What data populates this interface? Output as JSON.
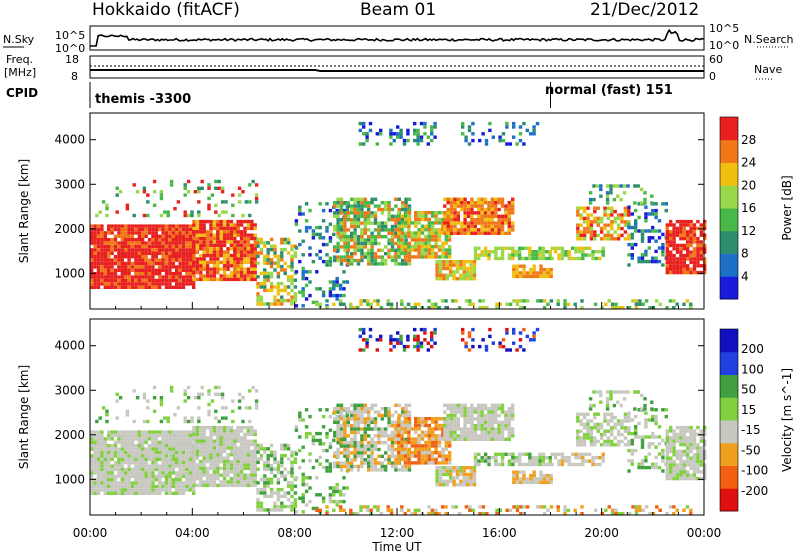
{
  "header": {
    "station": "Hokkaido (fitACF)",
    "beam": "Beam 01",
    "date": "21/Dec/2012"
  },
  "panels": {
    "nsky_label": "N.Sky",
    "nsearch_label": "N.Search",
    "nsearch_ticks": [
      "10^5",
      "10^0"
    ],
    "freq_label_line1": "Freq.",
    "freq_label_line2": "[MHz]",
    "freq_ticks": [
      "18",
      "8"
    ],
    "nave_label": "Nave",
    "nave_ticks": [
      "60",
      "0"
    ],
    "cpid_label": "CPID",
    "cpid_segments": [
      {
        "text": "themis -3300",
        "start_hour": 0,
        "end_hour": 18
      },
      {
        "text": "normal (fast) 151",
        "start_hour": 18,
        "end_hour": 24
      }
    ]
  },
  "chart_data": [
    {
      "type": "heatmap",
      "title": "",
      "ylabel": "Slant Range [km]",
      "xlabel": "",
      "xlim": [
        0,
        24
      ],
      "ylim": [
        200,
        4600
      ],
      "yticks": [
        "1000",
        "2000",
        "3000",
        "4000"
      ],
      "colorbar_label": "Power [dB]",
      "colorbar_ticks": [
        "4",
        "8",
        "12",
        "16",
        "20",
        "24",
        "28"
      ],
      "colorbar_range": [
        0,
        32
      ],
      "colors": [
        "#1a1adc",
        "#1c70c8",
        "#2c8e6e",
        "#48b848",
        "#98d84a",
        "#f0c010",
        "#f07818",
        "#e82020"
      ]
    },
    {
      "type": "heatmap",
      "title": "",
      "ylabel": "Slant Range [km]",
      "xlabel": "Time UT",
      "xlim": [
        0,
        24
      ],
      "ylim": [
        200,
        4600
      ],
      "yticks": [
        "1000",
        "2000",
        "3000",
        "4000"
      ],
      "xticks": [
        "00:00",
        "04:00",
        "08:00",
        "12:00",
        "16:00",
        "20:00",
        "00:00"
      ],
      "colorbar_label": "Velocity [m s^-1]",
      "colorbar_ticks": [
        "200",
        "100",
        "50",
        "15",
        "-15",
        "-50",
        "-100",
        "-200"
      ],
      "colors": [
        "#1010c0",
        "#2040e0",
        "#40a040",
        "#80d040",
        "#c8c8c0",
        "#f0a020",
        "#f06010",
        "#e01010"
      ]
    }
  ]
}
